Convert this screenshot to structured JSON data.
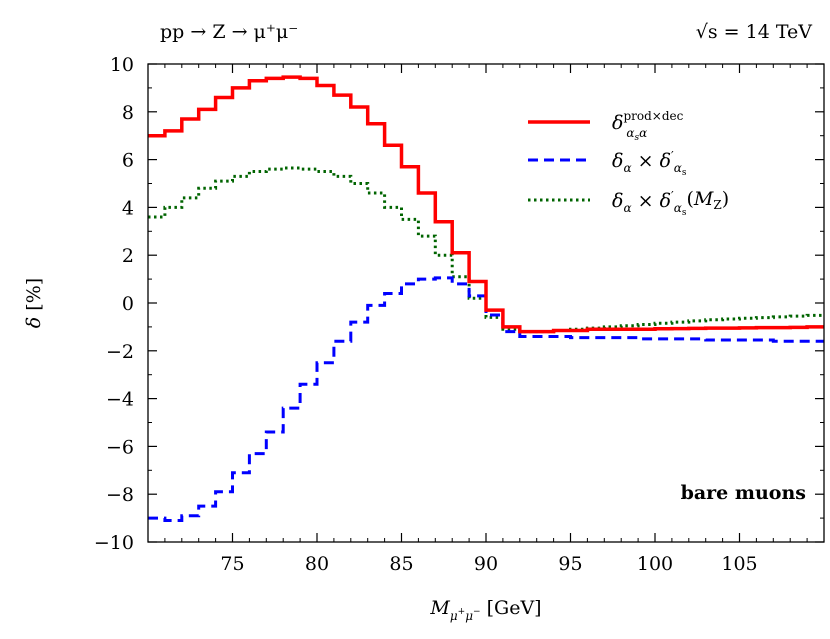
{
  "chart_data": {
    "type": "line",
    "process_label": "pp → Z → μ⁺μ⁻",
    "energy_label": "√s = 14 TeV",
    "annotation": "bare muons",
    "xlabel": "M_{μ⁺μ⁻} [GeV]",
    "ylabel": "δ [%]",
    "xlim": [
      70,
      110
    ],
    "ylim": [
      -10,
      10
    ],
    "xticks": [
      75,
      80,
      85,
      90,
      95,
      100,
      105
    ],
    "yticks": [
      -10,
      -8,
      -6,
      -4,
      -2,
      0,
      2,
      4,
      6,
      8,
      10
    ],
    "xtick_labels": [
      "75",
      "80",
      "85",
      "90",
      "95",
      "100",
      "105"
    ],
    "ytick_labels": [
      "−10",
      "−8",
      "−6",
      "−4",
      "−2",
      "0",
      "2",
      "4",
      "6",
      "8",
      "10"
    ],
    "legend_position": "top-right",
    "series": [
      {
        "name": "δ_{α_s α}^{prod×dec}",
        "color": "#ff0000",
        "style": "solid",
        "steps": [
          {
            "x0": 70,
            "x1": 71,
            "y": 7.0
          },
          {
            "x0": 71,
            "x1": 72,
            "y": 7.2
          },
          {
            "x0": 72,
            "x1": 73,
            "y": 7.7
          },
          {
            "x0": 73,
            "x1": 74,
            "y": 8.1
          },
          {
            "x0": 74,
            "x1": 75,
            "y": 8.6
          },
          {
            "x0": 75,
            "x1": 76,
            "y": 9.0
          },
          {
            "x0": 76,
            "x1": 77,
            "y": 9.3
          },
          {
            "x0": 77,
            "x1": 78,
            "y": 9.4
          },
          {
            "x0": 78,
            "x1": 79,
            "y": 9.45
          },
          {
            "x0": 79,
            "x1": 80,
            "y": 9.4
          },
          {
            "x0": 80,
            "x1": 81,
            "y": 9.1
          },
          {
            "x0": 81,
            "x1": 82,
            "y": 8.7
          },
          {
            "x0": 82,
            "x1": 83,
            "y": 8.2
          },
          {
            "x0": 83,
            "x1": 84,
            "y": 7.5
          },
          {
            "x0": 84,
            "x1": 85,
            "y": 6.6
          },
          {
            "x0": 85,
            "x1": 86,
            "y": 5.7
          },
          {
            "x0": 86,
            "x1": 87,
            "y": 4.6
          },
          {
            "x0": 87,
            "x1": 88,
            "y": 3.4
          },
          {
            "x0": 88,
            "x1": 89,
            "y": 2.1
          },
          {
            "x0": 89,
            "x1": 90,
            "y": 0.9
          },
          {
            "x0": 90,
            "x1": 91,
            "y": -0.3
          },
          {
            "x0": 91,
            "x1": 92,
            "y": -1.0
          },
          {
            "x0": 92,
            "x1": 93,
            "y": -1.2
          },
          {
            "x0": 93,
            "x1": 94,
            "y": -1.2
          },
          {
            "x0": 94,
            "x1": 95,
            "y": -1.15
          },
          {
            "x0": 95,
            "x1": 96,
            "y": -1.15
          },
          {
            "x0": 96,
            "x1": 97,
            "y": -1.1
          },
          {
            "x0": 97,
            "x1": 98,
            "y": -1.1
          },
          {
            "x0": 98,
            "x1": 99,
            "y": -1.1
          },
          {
            "x0": 99,
            "x1": 100,
            "y": -1.1
          },
          {
            "x0": 100,
            "x1": 101,
            "y": -1.08
          },
          {
            "x0": 101,
            "x1": 102,
            "y": -1.07
          },
          {
            "x0": 102,
            "x1": 103,
            "y": -1.06
          },
          {
            "x0": 103,
            "x1": 104,
            "y": -1.05
          },
          {
            "x0": 104,
            "x1": 105,
            "y": -1.05
          },
          {
            "x0": 105,
            "x1": 106,
            "y": -1.04
          },
          {
            "x0": 106,
            "x1": 107,
            "y": -1.03
          },
          {
            "x0": 107,
            "x1": 108,
            "y": -1.03
          },
          {
            "x0": 108,
            "x1": 109,
            "y": -1.02
          },
          {
            "x0": 109,
            "x1": 110,
            "y": -1.0
          }
        ]
      },
      {
        "name": "δ_α × δ'_{α_s}",
        "color": "#0000ff",
        "style": "dashed",
        "steps": [
          {
            "x0": 70,
            "x1": 71,
            "y": -9.0
          },
          {
            "x0": 71,
            "x1": 72,
            "y": -9.1
          },
          {
            "x0": 72,
            "x1": 73,
            "y": -8.9
          },
          {
            "x0": 73,
            "x1": 74,
            "y": -8.5
          },
          {
            "x0": 74,
            "x1": 75,
            "y": -7.9
          },
          {
            "x0": 75,
            "x1": 76,
            "y": -7.1
          },
          {
            "x0": 76,
            "x1": 77,
            "y": -6.3
          },
          {
            "x0": 77,
            "x1": 78,
            "y": -5.4
          },
          {
            "x0": 78,
            "x1": 79,
            "y": -4.4
          },
          {
            "x0": 79,
            "x1": 80,
            "y": -3.4
          },
          {
            "x0": 80,
            "x1": 81,
            "y": -2.5
          },
          {
            "x0": 81,
            "x1": 82,
            "y": -1.6
          },
          {
            "x0": 82,
            "x1": 83,
            "y": -0.8
          },
          {
            "x0": 83,
            "x1": 84,
            "y": -0.1
          },
          {
            "x0": 84,
            "x1": 85,
            "y": 0.4
          },
          {
            "x0": 85,
            "x1": 86,
            "y": 0.8
          },
          {
            "x0": 86,
            "x1": 87,
            "y": 1.0
          },
          {
            "x0": 87,
            "x1": 88,
            "y": 1.05
          },
          {
            "x0": 88,
            "x1": 89,
            "y": 0.8
          },
          {
            "x0": 89,
            "x1": 90,
            "y": 0.3
          },
          {
            "x0": 90,
            "x1": 91,
            "y": -0.5
          },
          {
            "x0": 91,
            "x1": 92,
            "y": -1.2
          },
          {
            "x0": 92,
            "x1": 93,
            "y": -1.4
          },
          {
            "x0": 93,
            "x1": 94,
            "y": -1.4
          },
          {
            "x0": 94,
            "x1": 95,
            "y": -1.4
          },
          {
            "x0": 95,
            "x1": 96,
            "y": -1.45
          },
          {
            "x0": 96,
            "x1": 97,
            "y": -1.45
          },
          {
            "x0": 97,
            "x1": 98,
            "y": -1.45
          },
          {
            "x0": 98,
            "x1": 99,
            "y": -1.45
          },
          {
            "x0": 99,
            "x1": 100,
            "y": -1.5
          },
          {
            "x0": 100,
            "x1": 101,
            "y": -1.5
          },
          {
            "x0": 101,
            "x1": 102,
            "y": -1.5
          },
          {
            "x0": 102,
            "x1": 103,
            "y": -1.5
          },
          {
            "x0": 103,
            "x1": 104,
            "y": -1.55
          },
          {
            "x0": 104,
            "x1": 105,
            "y": -1.55
          },
          {
            "x0": 105,
            "x1": 106,
            "y": -1.55
          },
          {
            "x0": 106,
            "x1": 107,
            "y": -1.55
          },
          {
            "x0": 107,
            "x1": 108,
            "y": -1.6
          },
          {
            "x0": 108,
            "x1": 109,
            "y": -1.6
          },
          {
            "x0": 109,
            "x1": 110,
            "y": -1.6
          }
        ]
      },
      {
        "name": "δ_α × δ'_{α_s}(M_Z)",
        "color": "#006400",
        "style": "dotted",
        "steps": [
          {
            "x0": 70,
            "x1": 71,
            "y": 3.6
          },
          {
            "x0": 71,
            "x1": 72,
            "y": 4.0
          },
          {
            "x0": 72,
            "x1": 73,
            "y": 4.4
          },
          {
            "x0": 73,
            "x1": 74,
            "y": 4.8
          },
          {
            "x0": 74,
            "x1": 75,
            "y": 5.1
          },
          {
            "x0": 75,
            "x1": 76,
            "y": 5.3
          },
          {
            "x0": 76,
            "x1": 77,
            "y": 5.5
          },
          {
            "x0": 77,
            "x1": 78,
            "y": 5.6
          },
          {
            "x0": 78,
            "x1": 79,
            "y": 5.65
          },
          {
            "x0": 79,
            "x1": 80,
            "y": 5.6
          },
          {
            "x0": 80,
            "x1": 81,
            "y": 5.5
          },
          {
            "x0": 81,
            "x1": 82,
            "y": 5.3
          },
          {
            "x0": 82,
            "x1": 83,
            "y": 5.0
          },
          {
            "x0": 83,
            "x1": 84,
            "y": 4.6
          },
          {
            "x0": 84,
            "x1": 85,
            "y": 4.0
          },
          {
            "x0": 85,
            "x1": 86,
            "y": 3.5
          },
          {
            "x0": 86,
            "x1": 87,
            "y": 2.8
          },
          {
            "x0": 87,
            "x1": 88,
            "y": 2.0
          },
          {
            "x0": 88,
            "x1": 89,
            "y": 1.1
          },
          {
            "x0": 89,
            "x1": 90,
            "y": 0.2
          },
          {
            "x0": 90,
            "x1": 91,
            "y": -0.6
          },
          {
            "x0": 91,
            "x1": 92,
            "y": -1.1
          },
          {
            "x0": 92,
            "x1": 93,
            "y": -1.2
          },
          {
            "x0": 93,
            "x1": 94,
            "y": -1.2
          },
          {
            "x0": 94,
            "x1": 95,
            "y": -1.15
          },
          {
            "x0": 95,
            "x1": 96,
            "y": -1.1
          },
          {
            "x0": 96,
            "x1": 97,
            "y": -1.05
          },
          {
            "x0": 97,
            "x1": 98,
            "y": -1.0
          },
          {
            "x0": 98,
            "x1": 99,
            "y": -0.95
          },
          {
            "x0": 99,
            "x1": 100,
            "y": -0.9
          },
          {
            "x0": 100,
            "x1": 101,
            "y": -0.85
          },
          {
            "x0": 101,
            "x1": 102,
            "y": -0.8
          },
          {
            "x0": 102,
            "x1": 103,
            "y": -0.75
          },
          {
            "x0": 103,
            "x1": 104,
            "y": -0.7
          },
          {
            "x0": 104,
            "x1": 105,
            "y": -0.67
          },
          {
            "x0": 105,
            "x1": 106,
            "y": -0.64
          },
          {
            "x0": 106,
            "x1": 107,
            "y": -0.61
          },
          {
            "x0": 107,
            "x1": 108,
            "y": -0.58
          },
          {
            "x0": 108,
            "x1": 109,
            "y": -0.55
          },
          {
            "x0": 109,
            "x1": 110,
            "y": -0.52
          }
        ]
      }
    ]
  }
}
